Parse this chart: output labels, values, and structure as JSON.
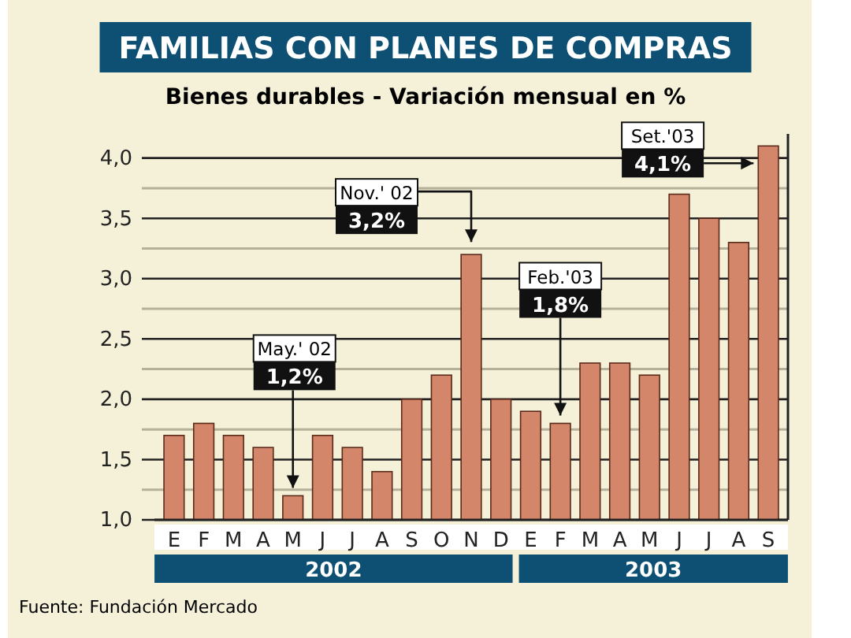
{
  "chart_data": {
    "type": "bar",
    "title": "FAMILIAS CON PLANES DE COMPRAS",
    "subtitle": "Bienes durables - Variación mensual en %",
    "categories": [
      "E",
      "F",
      "M",
      "A",
      "M",
      "J",
      "J",
      "A",
      "S",
      "O",
      "N",
      "D",
      "E",
      "F",
      "M",
      "A",
      "M",
      "J",
      "J",
      "A",
      "S"
    ],
    "values": [
      1.7,
      1.8,
      1.7,
      1.6,
      1.2,
      1.7,
      1.6,
      1.4,
      2.0,
      2.2,
      3.2,
      2.0,
      1.9,
      1.8,
      2.3,
      2.3,
      2.2,
      3.7,
      3.5,
      3.3,
      4.1
    ],
    "color": "#d4866a",
    "ylim": [
      1,
      4.2
    ],
    "yticks": [
      {
        "value": 1,
        "label": "1,0"
      },
      {
        "value": 1.25,
        "label": null
      },
      {
        "value": 1.5,
        "label": "1,5"
      },
      {
        "value": 1.75,
        "label": null
      },
      {
        "value": 2,
        "label": "2,0"
      },
      {
        "value": 2.25,
        "label": null
      },
      {
        "value": 2.5,
        "label": "2,5"
      },
      {
        "value": 2.75,
        "label": null
      },
      {
        "value": 3,
        "label": "3,0"
      },
      {
        "value": 3.25,
        "label": null
      },
      {
        "value": 3.5,
        "label": "3,5"
      },
      {
        "value": 3.75,
        "label": null
      },
      {
        "value": 4,
        "label": "4,0"
      }
    ],
    "grid": "y",
    "annotations": [
      "May.' 02\n1,2%",
      "Nov.' 02\n3,2%",
      "Feb.'03\n1,8%",
      "Set.'03\n4,1%",
      "2002",
      "2003",
      "Fuente: Fundación Mercado"
    ]
  }
}
